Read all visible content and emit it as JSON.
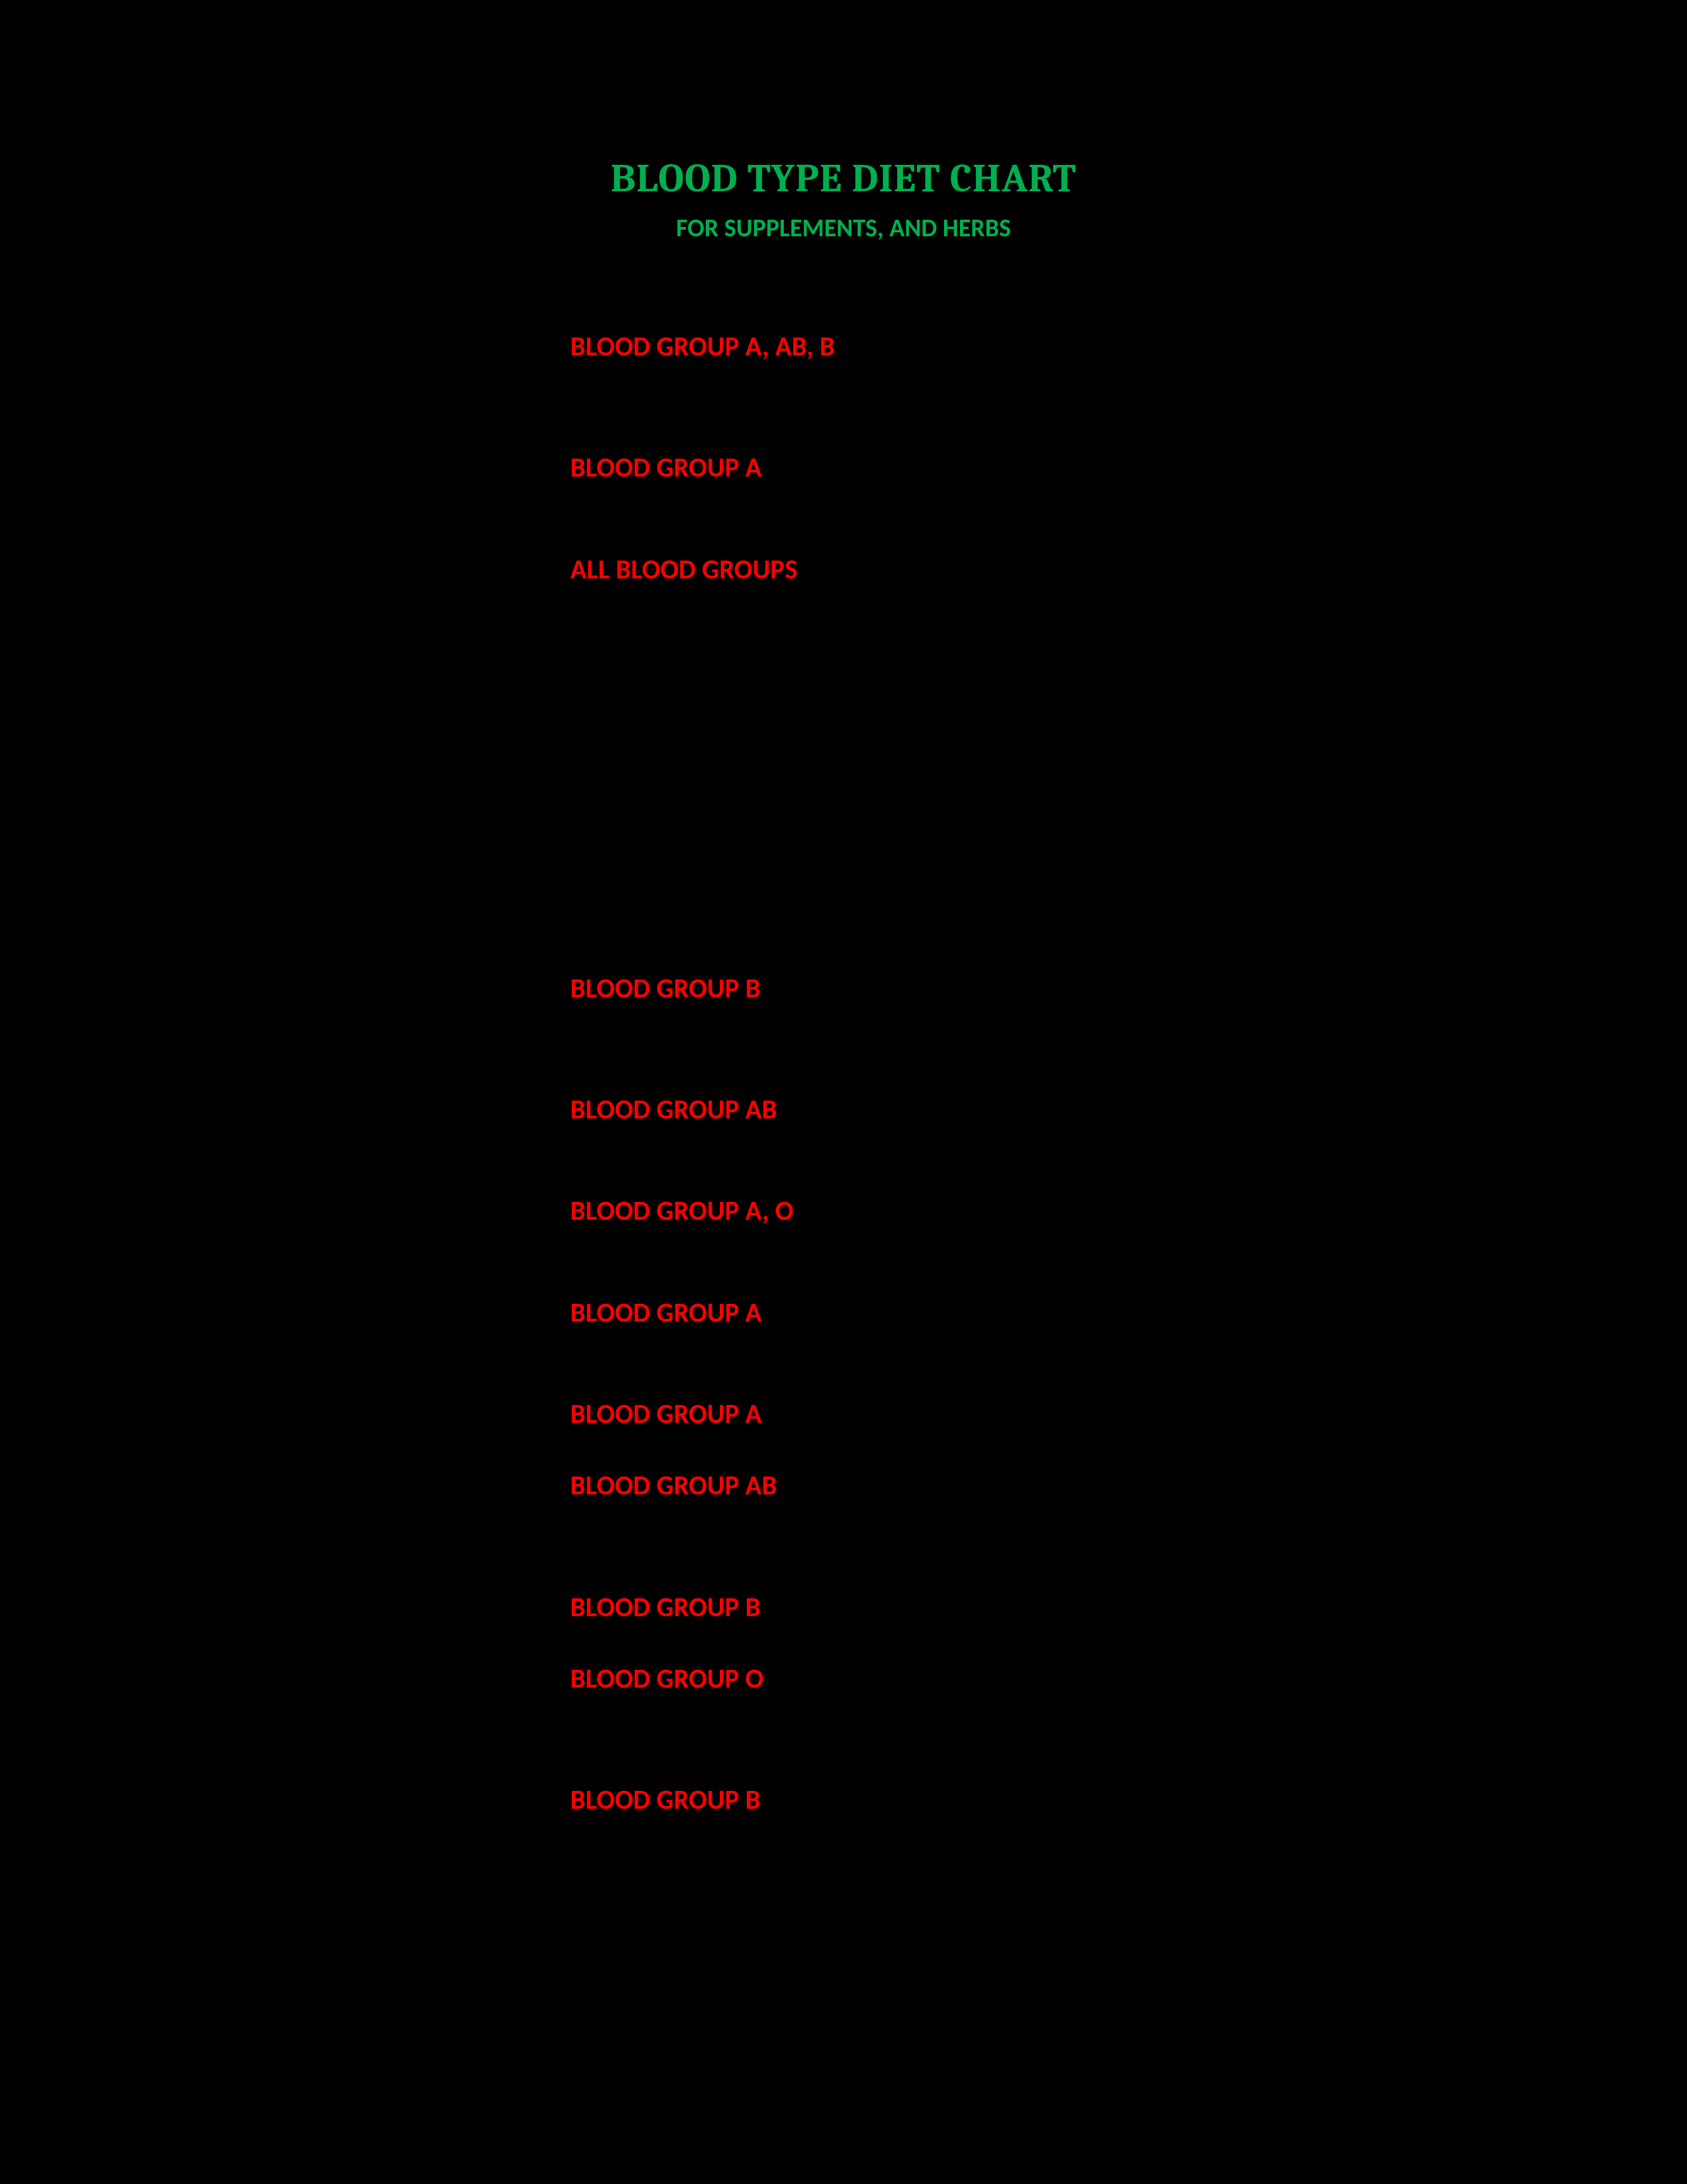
{
  "document": {
    "title": "BLOOD TYPE DIET CHART",
    "subtitle": "FOR SUPPLEMENTS, AND HERBS",
    "background_color": "#000000",
    "title_color": "#00b050",
    "entry_color": "#ff0000",
    "title_fontsize": 60,
    "subtitle_fontsize": 38,
    "entry_fontsize": 41,
    "entries": [
      {
        "label": "BLOOD GROUP A, AB, B",
        "gap_after": "large"
      },
      {
        "label": "BLOOD GROUP A",
        "gap_after": "med"
      },
      {
        "label": "ALL BLOOD GROUPS",
        "gap_after": "xlarge"
      },
      {
        "label": "BLOOD GROUP B",
        "gap_after": "large"
      },
      {
        "label": "BLOOD GROUP AB",
        "gap_after": "med"
      },
      {
        "label": "BLOOD GROUP A, O",
        "gap_after": "med"
      },
      {
        "label": "BLOOD GROUP A",
        "gap_after": "med"
      },
      {
        "label": "BLOOD GROUP A",
        "gap_after": "small"
      },
      {
        "label": "BLOOD GROUP AB",
        "gap_after": "large"
      },
      {
        "label": "BLOOD GROUP B",
        "gap_after": "small"
      },
      {
        "label": "BLOOD GROUP O",
        "gap_after": "large"
      },
      {
        "label": "BLOOD GROUP B",
        "gap_after": "small"
      }
    ]
  }
}
